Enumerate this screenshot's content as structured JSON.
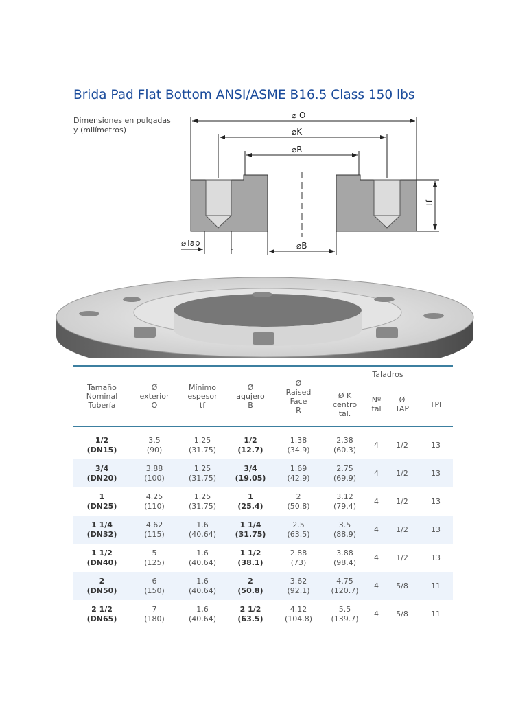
{
  "title": "Brida Pad Flat Bottom ANSI/ASME B16.5 Class 150 lbs",
  "subtitle": "Dimensiones en pulgadas\ny (milímetros)",
  "diagram": {
    "labels": {
      "o": "⌀ O",
      "k": "⌀K",
      "r": "⌀R",
      "tap": "⌀Tap",
      "b": "⌀B",
      "tf": "tf"
    }
  },
  "table": {
    "headers": [
      "Tamaño\nNominal\nTubería",
      "Ø\nexterior\nO",
      "Mínimo\nespesor\ntf",
      "Ø\nagujero\nB",
      "Ø\nRaised\nFace\nR"
    ],
    "group": "Taladros",
    "subheaders": [
      "Ø K\ncentro\ntal.",
      "Nº\ntal",
      "Ø\nTAP",
      "TPI"
    ],
    "rows": [
      [
        [
          "1/2",
          "(DN15)"
        ],
        [
          "3.5",
          "(90)"
        ],
        [
          "1.25",
          "(31.75)"
        ],
        [
          "1/2",
          "(12.7)"
        ],
        [
          "1.38",
          "(34.9)"
        ],
        [
          "2.38",
          "(60.3)"
        ],
        "4",
        "1/2",
        "13"
      ],
      [
        [
          "3/4",
          "(DN20)"
        ],
        [
          "3.88",
          "(100)"
        ],
        [
          "1.25",
          "(31.75)"
        ],
        [
          "3/4",
          "(19.05)"
        ],
        [
          "1.69",
          "(42.9)"
        ],
        [
          "2.75",
          "(69.9)"
        ],
        "4",
        "1/2",
        "13"
      ],
      [
        [
          "1",
          "(DN25)"
        ],
        [
          "4.25",
          "(110)"
        ],
        [
          "1.25",
          "(31.75)"
        ],
        [
          "1",
          "(25.4)"
        ],
        [
          "2",
          "(50.8)"
        ],
        [
          "3.12",
          "(79.4)"
        ],
        "4",
        "1/2",
        "13"
      ],
      [
        [
          "1 1/4",
          "(DN32)"
        ],
        [
          "4.62",
          "(115)"
        ],
        [
          "1.6",
          "(40.64)"
        ],
        [
          "1 1/4",
          "(31.75)"
        ],
        [
          "2.5",
          "(63.5)"
        ],
        [
          "3.5",
          "(88.9)"
        ],
        "4",
        "1/2",
        "13"
      ],
      [
        [
          "1 1/2",
          "(DN40)"
        ],
        [
          "5",
          "(125)"
        ],
        [
          "1.6",
          "(40.64)"
        ],
        [
          "1 1/2",
          "(38.1)"
        ],
        [
          "2.88",
          "(73)"
        ],
        [
          "3.88",
          "(98.4)"
        ],
        "4",
        "1/2",
        "13"
      ],
      [
        [
          "2",
          "(DN50)"
        ],
        [
          "6",
          "(150)"
        ],
        [
          "1.6",
          "(40.64)"
        ],
        [
          "2",
          "(50.8)"
        ],
        [
          "3.62",
          "(92.1)"
        ],
        [
          "4.75",
          "(120.7)"
        ],
        "4",
        "5/8",
        "11"
      ],
      [
        [
          "2 1/2",
          "(DN65)"
        ],
        [
          "7",
          "(180)"
        ],
        [
          "1.6",
          "(40.64)"
        ],
        [
          "2 1/2",
          "(63.5)"
        ],
        [
          "4.12",
          "(104.8)"
        ],
        [
          "5.5",
          "(139.7)"
        ],
        "4",
        "5/8",
        "11"
      ]
    ]
  }
}
